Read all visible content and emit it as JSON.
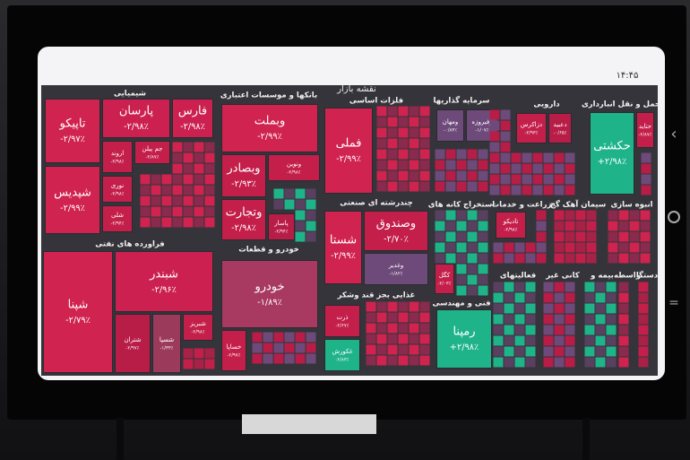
{
  "status_bar": {
    "time": "۱۴:۴۵"
  },
  "treemap": {
    "title": "نقشه بازار",
    "sectors": [
      {
        "name": "شیمیایی",
        "tiles": [
          {
            "name": "تاپیکو",
            "change": "-۲/۹۷٪",
            "color": "#d0234f"
          },
          {
            "name": "شپدیس",
            "change": "-۲/۹۹٪",
            "color": "#d0234f"
          },
          {
            "name": "پارسان",
            "change": "-۲/۹۸٪",
            "color": "#cc2150"
          },
          {
            "name": "فارس",
            "change": "-۲/۹۸٪",
            "color": "#cc2150"
          },
          {
            "name": "اروند",
            "change": "-۲/۹۸٪",
            "color": "#c41f4b"
          },
          {
            "name": "جم پیلن",
            "change": "-۲/۸۷٪",
            "color": "#c41f4b"
          },
          {
            "name": "نوری",
            "change": "-۲/۹۸٪",
            "color": "#c41f4b"
          },
          {
            "name": "شلی",
            "change": "-۲/۹۴٪",
            "color": "#c41f4b"
          }
        ]
      },
      {
        "name": "فراورده های نفتی",
        "tiles": [
          {
            "name": "شپنا",
            "change": "-۲/۷۹٪",
            "color": "#d0234f"
          },
          {
            "name": "شبندر",
            "change": "-۲/۹۶٪",
            "color": "#cc2150"
          },
          {
            "name": "شتران",
            "change": "-۲/۹۷٪",
            "color": "#b81d47"
          },
          {
            "name": "شسپا",
            "change": "-۱/۳۳٪",
            "color": "#9c3a5c"
          },
          {
            "name": "شبریز",
            "change": "-۲/۹۸٪",
            "color": "#c41f4b"
          }
        ]
      },
      {
        "name": "بانکها و موسسات اعتباری",
        "tiles": [
          {
            "name": "وبملت",
            "change": "-۲/۹۹٪",
            "color": "#d0234f"
          },
          {
            "name": "وبصادر",
            "change": "-۲/۹۳٪",
            "color": "#c41f4b"
          },
          {
            "name": "ونوین",
            "change": "-۲/۹۸٪",
            "color": "#c41f4b"
          },
          {
            "name": "وتجارت",
            "change": "-۲/۹۸٪",
            "color": "#c41f4b"
          },
          {
            "name": "پاسار",
            "change": "-۲/۹۴٪",
            "color": "#b81d47"
          }
        ]
      },
      {
        "name": "خودرو و قطعات",
        "tiles": [
          {
            "name": "خودرو",
            "change": "-۱/۸۹٪",
            "color": "#a83a62"
          },
          {
            "name": "خساپا",
            "change": "-۲/۹۷٪",
            "color": "#c41f4b"
          }
        ]
      },
      {
        "name": "فلزات اساسی",
        "tiles": [
          {
            "name": "فملی",
            "change": "-۲/۹۹٪",
            "color": "#d0234f"
          }
        ]
      },
      {
        "name": "چندرشته ای صنعتی",
        "tiles": [
          {
            "name": "شستا",
            "change": "-۲/۹۹٪",
            "color": "#d0234f"
          },
          {
            "name": "وصندوق",
            "change": "-۲/۷۰٪",
            "color": "#c41f4b"
          },
          {
            "name": "وغدیر",
            "change": "-۱/۸۲٪",
            "color": "#6e4a7a"
          }
        ]
      },
      {
        "name": "غذایی بجز قند وشکر",
        "tiles": [
          {
            "name": "ذرت",
            "change": "-۲/۶۷٪",
            "color": "#c41f4b"
          },
          {
            "name": "غکورش",
            "change": "-۲/۸۳٪",
            "color": "#1fb38a"
          }
        ]
      },
      {
        "name": "سرمایه گذاریها",
        "tiles": [
          {
            "name": "ومهان",
            "change": "-۰/۸۳٪",
            "color": "#6e4a7a"
          },
          {
            "name": "وفیروزه",
            "change": "-۱/۰۷٪",
            "color": "#6e4a7a"
          }
        ]
      },
      {
        "name": "دارویی",
        "tiles": [
          {
            "name": "دزاکرس",
            "change": "-۲/۹۳٪",
            "color": "#c41f4b"
          },
          {
            "name": "دعبید",
            "change": "-۰/۶۵٪",
            "color": "#b81d47"
          }
        ]
      },
      {
        "name": "حمل و نقل انبارداری",
        "tiles": [
          {
            "name": "حکشتی",
            "change": "+۲/۹۸٪",
            "color": "#1fb38a"
          },
          {
            "name": "حتاید",
            "change": "-۲/۸۷٪",
            "color": "#c41f4b"
          }
        ]
      },
      {
        "name": "استخراج کانه های",
        "tiles": [
          {
            "name": "کگل",
            "change": "-۲/۰۳٪",
            "color": "#c41f4b"
          }
        ]
      },
      {
        "name": "فنی و مهندسی",
        "tiles": [
          {
            "name": "رمپنا",
            "change": "+۲/۹۸٪",
            "color": "#1fb38a"
          }
        ]
      },
      {
        "name": "زراعت و خدمات",
        "tiles": [
          {
            "name": "تادیکو",
            "change": "-۲/۹۸٪",
            "color": "#c41f4b"
          }
        ]
      },
      {
        "name": "سیمان آهک گچ",
        "tiles": []
      },
      {
        "name": "انبوه سازی",
        "tiles": []
      },
      {
        "name": "فعالیتهای",
        "tiles": []
      },
      {
        "name": "کانی غیر",
        "tiles": []
      },
      {
        "name": "بیمه و",
        "tiles": []
      },
      {
        "name": "واسطه",
        "tiles": []
      },
      {
        "name": "دستگا",
        "tiles": []
      }
    ]
  }
}
